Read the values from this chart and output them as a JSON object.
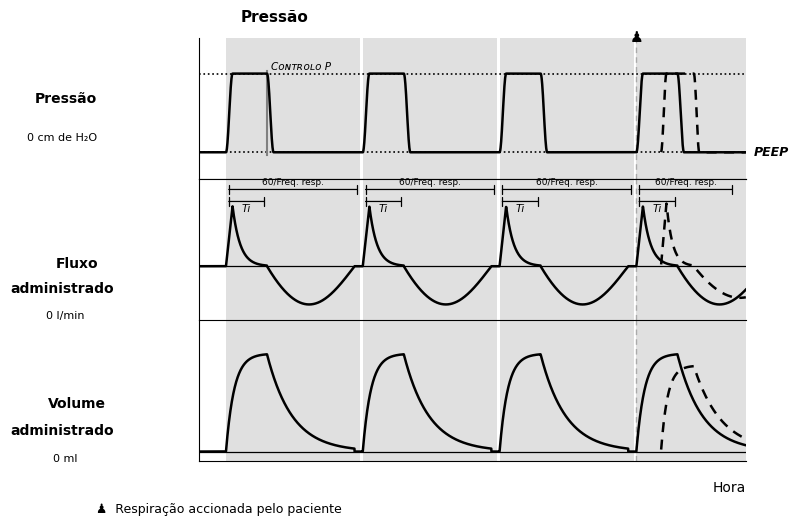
{
  "title_pressure_top": "Pressão",
  "title_pressure_left": "Pressão",
  "title_flow": "Fluxo\nadministrado",
  "title_volume": "Volume\nadministrado",
  "ylabel_pressure": "0 cm de H₂O",
  "ylabel_flow": "0 l/min",
  "ylabel_volume": "0 ml",
  "xlabel": "Hora",
  "label_peep": "PEEP",
  "label_controlo": "Cᴏɴᴛʀᴏʟᴏ P",
  "label_ti": "Ti",
  "label_freq": "60/Freq. resp.",
  "label_patient": "♟  Respiração accionada pelo paciente",
  "plot_bg": "#e0e0e0",
  "white_bg": "#ffffff",
  "line_color": "#000000",
  "gray_line": "#888888",
  "cycle_starts": [
    0.5,
    3.0,
    5.5,
    8.0
  ],
  "Ti": 0.75,
  "cycle_dur": 2.5,
  "peep_level": 0.18,
  "control_p_level": 0.85,
  "T": 10.0,
  "cs_pat": 8.45,
  "Ti_pat": 0.6
}
